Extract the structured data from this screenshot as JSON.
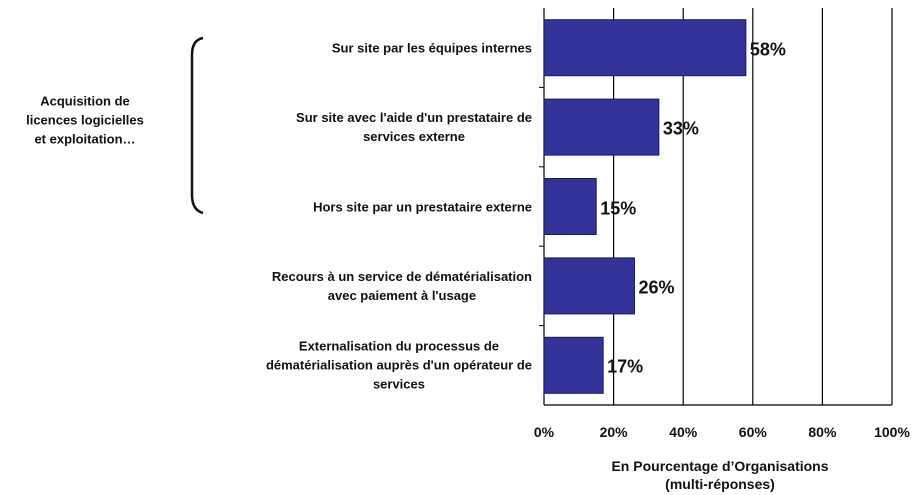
{
  "chart_data": {
    "type": "bar",
    "orientation": "horizontal",
    "categories": [
      "Sur site par les équipes internes",
      "Sur site avec l'aide d'un prestataire de\nservices externe",
      "Hors site par un prestataire externe",
      "Recours à un service de dématérialisation\navec paiement à l'usage",
      "Externalisation du processus de\ndématérialisation auprès d'un opérateur de\nservices"
    ],
    "values": [
      58,
      33,
      15,
      26,
      17
    ],
    "value_labels": [
      "58%",
      "33%",
      "15%",
      "26%",
      "17%"
    ],
    "color": "#333399",
    "xlim": [
      0,
      100
    ],
    "xticks": [
      {
        "value": 0,
        "label": "0%"
      },
      {
        "value": 20,
        "label": "20%"
      },
      {
        "value": 40,
        "label": "40%"
      },
      {
        "value": 60,
        "label": "60%"
      },
      {
        "value": 80,
        "label": "80%"
      },
      {
        "value": 100,
        "label": "100%"
      }
    ],
    "xlabel": "En Pourcentage d’Organisations\n(multi-réponses)",
    "grid": true,
    "annotations": [
      {
        "text": "Acquisition de\nlicences logicielles\net exploitation…"
      }
    ]
  }
}
